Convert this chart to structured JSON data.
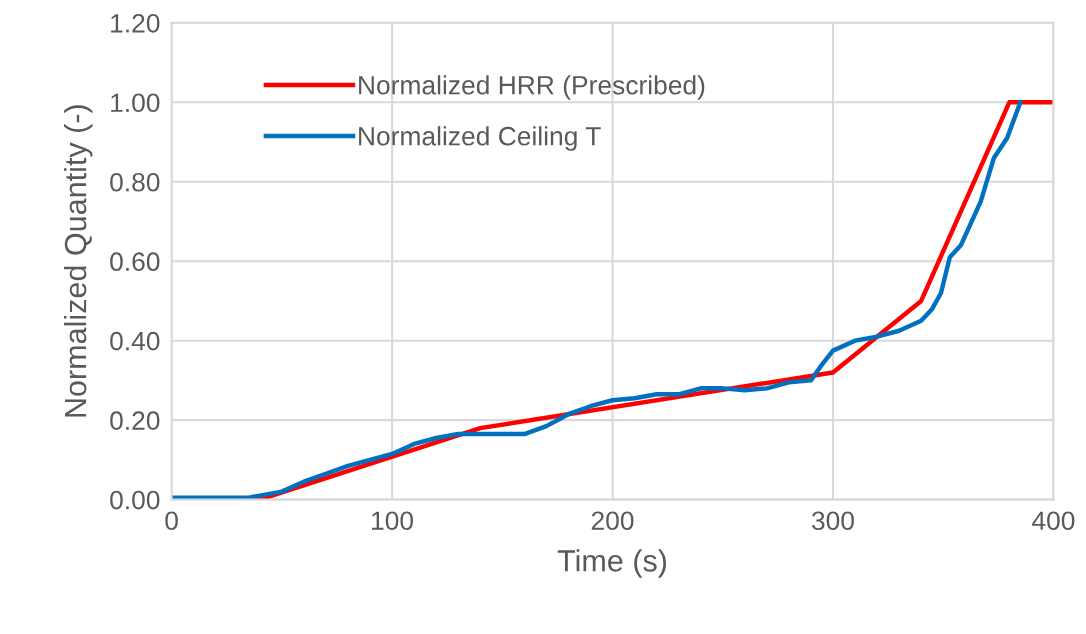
{
  "chart_data": {
    "type": "line",
    "xlabel": "Time (s)",
    "ylabel": "Normalized Quantity (-)",
    "xlim": [
      0,
      400
    ],
    "xticks": [
      0,
      100,
      200,
      300,
      400
    ],
    "ylim": [
      0,
      1.2
    ],
    "yticks": [
      {
        "value": 0,
        "label": "0.00"
      },
      {
        "value": 0.2,
        "label": "0.20"
      },
      {
        "value": 0.4,
        "label": "0.40"
      },
      {
        "value": 0.6,
        "label": "0.60"
      },
      {
        "value": 0.8,
        "label": "0.80"
      },
      {
        "value": 1.0,
        "label": "1.00"
      },
      {
        "value": 1.2,
        "label": "1.20"
      }
    ],
    "grid": true,
    "legend": "top left",
    "series": [
      {
        "name": "Normalized HRR (Prescribed)",
        "color": "#ff0000",
        "x": [
          0,
          40,
          140,
          300,
          340,
          380,
          400
        ],
        "values": [
          0,
          0,
          0.18,
          0.32,
          0.5,
          1.0,
          1.0
        ]
      },
      {
        "name": "Normalized Ceiling T",
        "color": "#0070c0",
        "x": [
          0,
          35,
          40,
          50,
          60,
          70,
          80,
          90,
          100,
          110,
          120,
          130,
          140,
          150,
          160,
          170,
          180,
          190,
          200,
          210,
          220,
          230,
          240,
          250,
          260,
          270,
          280,
          290,
          295,
          300,
          310,
          320,
          330,
          340,
          345,
          349,
          353,
          358,
          367,
          373,
          379,
          385
        ],
        "values": [
          0.005,
          0.005,
          0.01,
          0.02,
          0.045,
          0.065,
          0.085,
          0.1,
          0.115,
          0.14,
          0.155,
          0.165,
          0.165,
          0.165,
          0.165,
          0.185,
          0.215,
          0.235,
          0.25,
          0.255,
          0.265,
          0.265,
          0.28,
          0.28,
          0.275,
          0.28,
          0.295,
          0.3,
          0.34,
          0.375,
          0.4,
          0.41,
          0.425,
          0.45,
          0.48,
          0.52,
          0.61,
          0.64,
          0.75,
          0.86,
          0.91,
          1.0
        ]
      }
    ]
  }
}
